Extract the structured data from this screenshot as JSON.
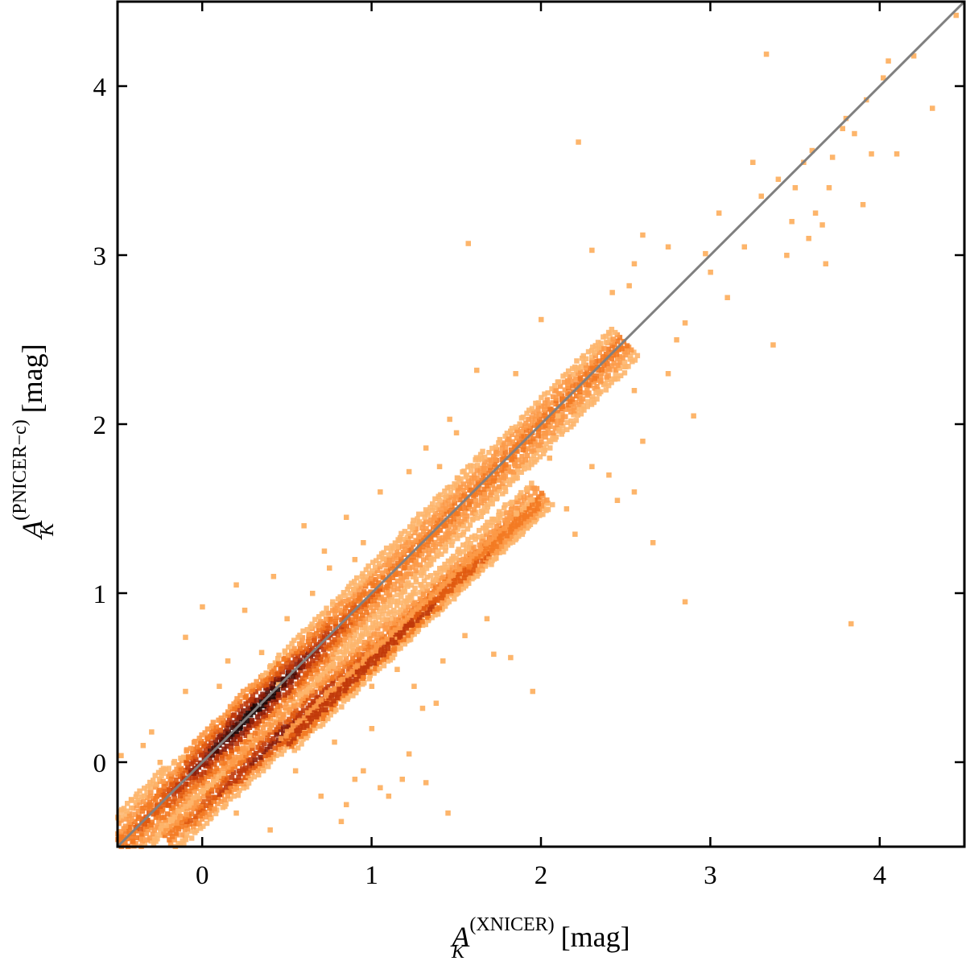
{
  "chart_data": {
    "type": "heatmap",
    "subtype": "2d-density-histogram",
    "xlabel": {
      "symbol": "A",
      "subscript": "K",
      "superscript": "(XNICER)",
      "unit": "[mag]"
    },
    "ylabel": {
      "symbol": "A",
      "subscript": "K",
      "superscript": "(PNICER−c)",
      "unit": "[mag]"
    },
    "xlim": [
      -0.5,
      4.5
    ],
    "ylim": [
      -0.5,
      4.5
    ],
    "xticks": [
      0,
      1,
      2,
      3,
      4
    ],
    "yticks": [
      0,
      1,
      2,
      3,
      4
    ],
    "xtick_labels": [
      "0",
      "1",
      "2",
      "3",
      "4"
    ],
    "ytick_labels": [
      "0",
      "1",
      "2",
      "3",
      "4"
    ],
    "grid": false,
    "reference_line": {
      "name": "y = x",
      "from": [
        -0.5,
        -0.5
      ],
      "to": [
        4.5,
        4.5
      ],
      "color": "#808080"
    },
    "colormap": [
      "#fdb56b",
      "#fc9a48",
      "#f37a22",
      "#e05a10",
      "#c0390a",
      "#8c1d08",
      "#4a0c05",
      "#1a0404"
    ],
    "density_ridges": [
      {
        "x0": -0.5,
        "y0": -0.5,
        "x1": 2.5,
        "y1": 2.5,
        "halfwidth0": 0.14,
        "halfwidth1": 0.12,
        "peak": 0.3,
        "peak_width": 0.45
      },
      {
        "x0": -0.2,
        "y0": -0.45,
        "x1": 2.0,
        "y1": 1.6,
        "halfwidth0": 0.08,
        "halfwidth1": 0.1,
        "peak": 0.45,
        "peak_width": 0.5
      },
      {
        "x0": 0.5,
        "y0": 0.12,
        "x1": 2.0,
        "y1": 1.55,
        "halfwidth0": 0.06,
        "halfwidth1": 0.06,
        "peak": 0.9,
        "peak_width": 0.8
      }
    ],
    "outliers": [
      [
        1.57,
        3.07
      ],
      [
        2.22,
        3.67
      ],
      [
        3.33,
        4.19
      ],
      [
        4.05,
        4.15
      ],
      [
        4.2,
        4.18
      ],
      [
        4.45,
        4.42
      ],
      [
        4.31,
        3.87
      ],
      [
        3.83,
        0.82
      ],
      [
        2.85,
        0.95
      ],
      [
        2.66,
        1.3
      ],
      [
        2.0,
        2.62
      ],
      [
        2.3,
        3.03
      ],
      [
        2.6,
        3.12
      ],
      [
        2.9,
        2.05
      ],
      [
        1.62,
        2.32
      ],
      [
        1.46,
        2.03
      ],
      [
        2.97,
        3.01
      ],
      [
        3.2,
        3.05
      ],
      [
        3.37,
        2.47
      ],
      [
        2.52,
        2.82
      ],
      [
        3.8,
        3.81
      ],
      [
        3.9,
        3.3
      ],
      [
        3.58,
        3.1
      ],
      [
        3.68,
        2.95
      ],
      [
        3.95,
        3.6
      ],
      [
        4.1,
        3.6
      ],
      [
        3.5,
        3.4
      ],
      [
        3.45,
        3.0
      ],
      [
        3.1,
        2.75
      ],
      [
        2.75,
        3.05
      ],
      [
        2.55,
        2.95
      ],
      [
        2.42,
        2.78
      ],
      [
        1.45,
        -0.3
      ],
      [
        1.32,
        -0.12
      ],
      [
        1.1,
        -0.2
      ],
      [
        0.9,
        -0.1
      ],
      [
        1.22,
        0.05
      ],
      [
        1.0,
        0.2
      ],
      [
        0.82,
        -0.35
      ],
      [
        0.62,
        -0.55
      ],
      [
        0.28,
        0.15
      ],
      [
        0.45,
        0.46
      ],
      [
        0.1,
        0.45
      ],
      [
        0.0,
        0.92
      ],
      [
        -0.1,
        0.74
      ],
      [
        0.2,
        1.05
      ],
      [
        0.42,
        1.1
      ],
      [
        0.85,
        1.45
      ],
      [
        1.05,
        1.6
      ],
      [
        0.6,
        1.4
      ],
      [
        1.22,
        1.72
      ],
      [
        1.32,
        1.86
      ],
      [
        0.72,
        1.25
      ],
      [
        0.95,
        1.3
      ],
      [
        1.72,
        0.64
      ],
      [
        1.82,
        0.62
      ],
      [
        1.95,
        0.42
      ],
      [
        1.55,
        0.75
      ],
      [
        1.68,
        0.85
      ],
      [
        1.42,
        0.6
      ],
      [
        1.3,
        0.32
      ],
      [
        0.78,
        0.12
      ],
      [
        0.55,
        -0.05
      ],
      [
        -0.42,
        -0.22
      ],
      [
        -0.35,
        0.1
      ],
      [
        -0.25,
        0.0
      ],
      [
        -0.48,
        0.04
      ],
      [
        -0.3,
        0.18
      ],
      [
        -0.1,
        0.42
      ],
      [
        2.45,
        1.55
      ],
      [
        2.6,
        1.9
      ],
      [
        2.3,
        1.75
      ],
      [
        2.15,
        1.5
      ],
      [
        2.05,
        1.8
      ],
      [
        1.5,
        1.95
      ],
      [
        1.4,
        1.75
      ],
      [
        1.85,
        2.3
      ],
      [
        2.1,
        2.05
      ],
      [
        2.55,
        2.2
      ],
      [
        2.75,
        2.3
      ],
      [
        2.85,
        2.6
      ],
      [
        3.0,
        2.9
      ],
      [
        3.25,
        3.55
      ],
      [
        3.3,
        3.35
      ],
      [
        3.55,
        3.55
      ],
      [
        3.7,
        3.4
      ],
      [
        3.05,
        3.25
      ],
      [
        2.8,
        2.5
      ],
      [
        3.6,
        3.62
      ],
      [
        3.4,
        3.45
      ],
      [
        3.48,
        3.2
      ],
      [
        3.62,
        3.25
      ],
      [
        3.72,
        3.58
      ],
      [
        3.85,
        3.72
      ],
      [
        3.92,
        3.92
      ],
      [
        4.02,
        4.05
      ],
      [
        3.66,
        3.18
      ],
      [
        3.78,
        3.75
      ],
      [
        0.35,
        0.65
      ],
      [
        0.15,
        0.6
      ],
      [
        0.25,
        0.9
      ],
      [
        0.5,
        0.85
      ],
      [
        0.65,
        1.0
      ],
      [
        0.75,
        1.15
      ],
      [
        0.9,
        1.2
      ],
      [
        1.0,
        0.45
      ],
      [
        1.15,
        0.55
      ],
      [
        1.25,
        0.45
      ],
      [
        1.38,
        0.35
      ],
      [
        0.95,
        -0.05
      ],
      [
        1.05,
        -0.15
      ],
      [
        1.18,
        -0.1
      ],
      [
        0.7,
        -0.2
      ],
      [
        0.85,
        -0.25
      ],
      [
        0.4,
        -0.4
      ],
      [
        0.2,
        -0.3
      ],
      [
        2.2,
        1.35
      ],
      [
        2.4,
        1.7
      ],
      [
        2.55,
        1.6
      ]
    ]
  }
}
